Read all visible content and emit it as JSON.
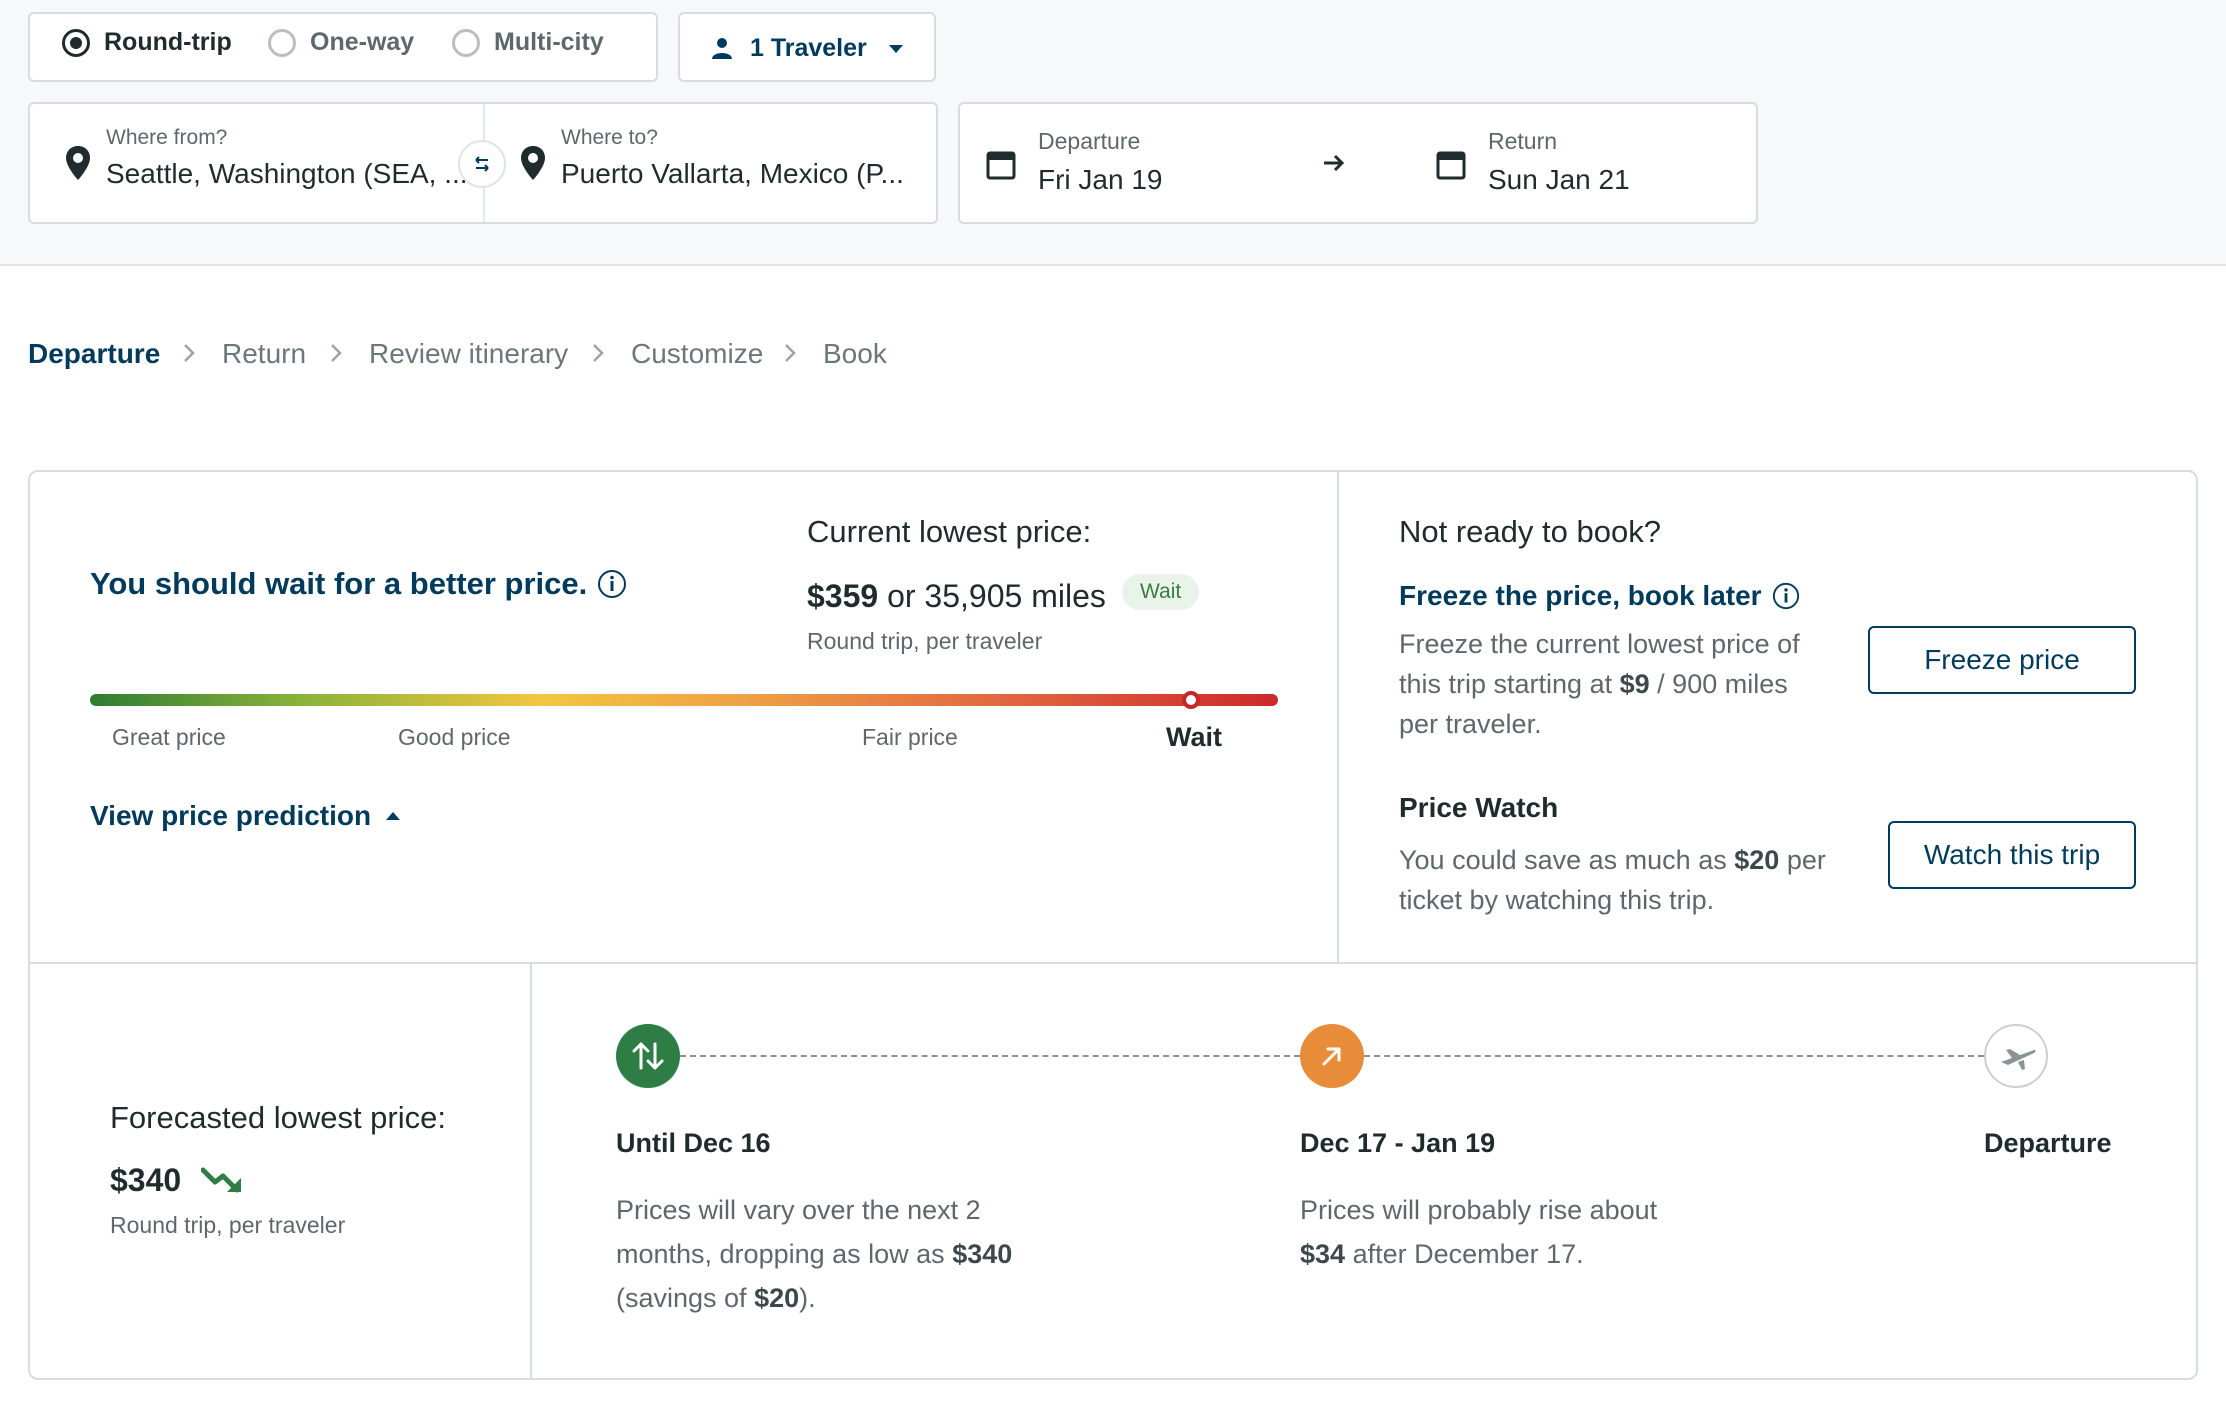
{
  "trip_type": {
    "options": [
      "Round-trip",
      "One-way",
      "Multi-city"
    ],
    "selected": "Round-trip"
  },
  "travelers": {
    "label": "1 Traveler"
  },
  "from": {
    "label": "Where from?",
    "value": "Seattle, Washington (SEA, ..."
  },
  "to": {
    "label": "Where to?",
    "value": "Puerto Vallarta, Mexico (P..."
  },
  "departure": {
    "label": "Departure",
    "value": "Fri Jan 19"
  },
  "return": {
    "label": "Return",
    "value": "Sun Jan 21"
  },
  "breadcrumb": [
    "Departure",
    "Return",
    "Review itinerary",
    "Customize",
    "Book"
  ],
  "recommendation": {
    "headline": "You should wait for a better price.",
    "current_title": "Current lowest price:",
    "price": "$359",
    "miles": "or 35,905 miles",
    "badge": "Wait",
    "sub": "Round trip, per traveler",
    "scale_labels": [
      "Great price",
      "Good price",
      "Fair price",
      "Wait"
    ],
    "scale_position": 0.93,
    "view_prediction": "View price prediction"
  },
  "not_ready": {
    "title": "Not ready to book?",
    "freeze_title": "Freeze the price, book later",
    "freeze_text_1": "Freeze the current lowest price of",
    "freeze_text_2_a": "this trip starting at",
    "freeze_price": "$9",
    "freeze_text_2_b": "/ 900 miles",
    "freeze_text_3": "per traveler.",
    "freeze_button": "Freeze price",
    "watch_title": "Price Watch",
    "watch_text_1_a": "You could save as much as",
    "watch_amount": "$20",
    "watch_text_1_b": "per",
    "watch_text_2": "ticket by watching this trip.",
    "watch_button": "Watch this trip"
  },
  "forecast": {
    "title": "Forecasted lowest price:",
    "price": "$340",
    "sub": "Round trip, per traveler"
  },
  "timeline": [
    {
      "title": "Until Dec 16",
      "line1": "Prices will vary over the next 2",
      "line2_a": "months, dropping as low as",
      "line2_b": "$340",
      "line3_a": "(savings of",
      "line3_b": "$20",
      "line3_c": ").",
      "color": "#2e7d45"
    },
    {
      "title": "Dec 17 - Jan 19",
      "line1": "Prices will probably rise about",
      "line2_a": "$34",
      "line2_b": "after December 17.",
      "color": "#e88c3a"
    },
    {
      "title": "Departure"
    }
  ],
  "colors": {
    "brand": "#003b5c",
    "wait_green": "#3b7d3f",
    "scale_end": "#c62828"
  }
}
